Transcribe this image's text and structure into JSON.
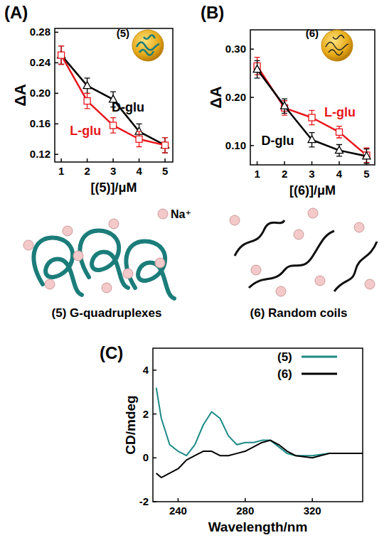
{
  "chart_data": [
    {
      "type": "line",
      "title": "(A)",
      "annotation": "(5)",
      "x_label": "[(5)]/μM",
      "y_label": "ΔA",
      "x": [
        1,
        2,
        3,
        4,
        5
      ],
      "xlim": [
        0.75,
        5.3
      ],
      "xticks": [
        1,
        2,
        3,
        4,
        5
      ],
      "ylim": [
        0.11,
        0.285
      ],
      "yticks": [
        0.12,
        0.16,
        {
          "value": 0.2,
          "label": "0.20"
        },
        0.24,
        0.28
      ],
      "series": [
        {
          "name": "D-glu",
          "color": "#000000",
          "marker": "triangle",
          "values": [
            0.25,
            0.21,
            0.192,
            0.15,
            0.132
          ],
          "errors": [
            0.012,
            0.01,
            0.01,
            0.01,
            0.01
          ]
        },
        {
          "name": "L-glu",
          "color": "#e8161b",
          "marker": "square",
          "values": [
            0.25,
            0.19,
            0.158,
            0.14,
            0.132
          ],
          "errors": [
            0.012,
            0.01,
            0.01,
            0.01,
            0.01
          ]
        }
      ]
    },
    {
      "type": "line",
      "title": "(B)",
      "annotation": "(6)",
      "x_label": "[(6)]/μM",
      "y_label": "ΔA",
      "x": [
        1,
        2,
        3,
        4,
        5
      ],
      "xlim": [
        0.75,
        5.3
      ],
      "xticks": [
        1,
        2,
        3,
        4,
        5
      ],
      "ylim": [
        0.06,
        0.34
      ],
      "yticks": [
        {
          "value": 0.1,
          "label": "0.10"
        },
        {
          "value": 0.2,
          "label": "0.20"
        },
        {
          "value": 0.3,
          "label": "0.30"
        }
      ],
      "series": [
        {
          "name": "L-glu",
          "color": "#e8161b",
          "marker": "square",
          "values": [
            0.265,
            0.178,
            0.158,
            0.128,
            0.08
          ],
          "errors": [
            0.018,
            0.015,
            0.015,
            0.012,
            0.015
          ]
        },
        {
          "name": "D-glu",
          "color": "#000000",
          "marker": "triangle",
          "values": [
            0.258,
            0.182,
            0.112,
            0.09,
            0.078
          ],
          "errors": [
            0.018,
            0.015,
            0.015,
            0.012,
            0.015
          ]
        }
      ]
    },
    {
      "type": "line",
      "title": "(C)",
      "x_label": "Wavelength/nm",
      "y_label": "CD/mdeg",
      "x": [
        227,
        230,
        235,
        240,
        245,
        250,
        255,
        260,
        265,
        270,
        275,
        280,
        285,
        290,
        295,
        300,
        305,
        310,
        320,
        330,
        340,
        350
      ],
      "xlim": [
        225,
        350
      ],
      "xticks": [
        240,
        280,
        320
      ],
      "ylim": [
        -2,
        5
      ],
      "yticks": [
        -2,
        0,
        2,
        4
      ],
      "legend": "upper right",
      "series": [
        {
          "name": "(5)",
          "color": "#1b8a86",
          "values": [
            3.2,
            1.8,
            0.6,
            0.3,
            0.1,
            0.6,
            1.5,
            2.1,
            1.8,
            1.0,
            0.6,
            0.7,
            0.7,
            0.8,
            0.8,
            0.5,
            0.2,
            0.1,
            0.1,
            0.2,
            0.2,
            0.2
          ]
        },
        {
          "name": "(6)",
          "color": "#000000",
          "values": [
            -0.7,
            -0.9,
            -0.7,
            -0.5,
            -0.1,
            0.1,
            0.3,
            0.3,
            0.1,
            0.1,
            0.2,
            0.3,
            0.5,
            0.7,
            0.8,
            0.6,
            0.3,
            0.1,
            0.0,
            0.2,
            0.2,
            0.2
          ]
        }
      ]
    }
  ],
  "diagram": {
    "ion_label": "Na⁺",
    "structures": [
      {
        "label": "(5) G-quadruplexes"
      },
      {
        "label": "(6) Random coils"
      }
    ]
  }
}
